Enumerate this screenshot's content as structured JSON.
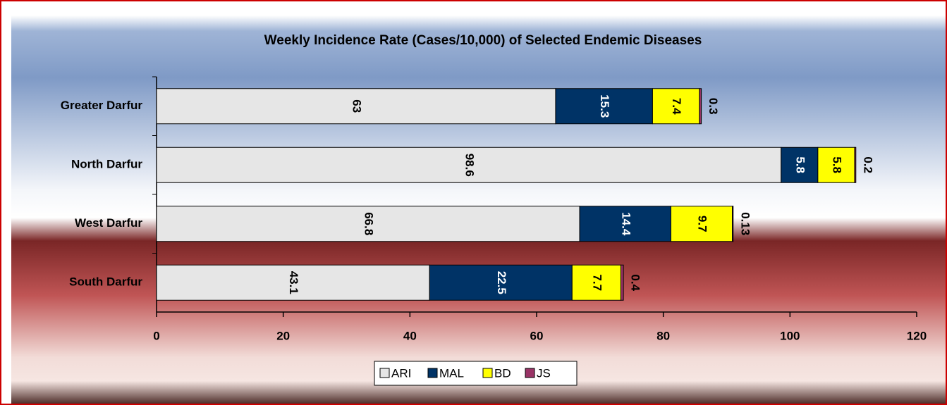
{
  "chart_data": {
    "type": "stacked_barh",
    "title": "Weekly Incidence Rate (Cases/10,000) of Selected Endemic Diseases",
    "categories": [
      "Greater Darfur",
      "North Darfur",
      "West Darfur",
      "South Darfur"
    ],
    "series": [
      {
        "name": "ARI",
        "color": "#e6e6e6",
        "values": [
          63,
          98.6,
          66.8,
          43.1
        ]
      },
      {
        "name": "MAL",
        "color": "#003366",
        "values": [
          15.3,
          5.8,
          14.4,
          22.5
        ]
      },
      {
        "name": "BD",
        "color": "#ffff00",
        "values": [
          7.4,
          5.8,
          9.7,
          7.7
        ]
      },
      {
        "name": "JS",
        "color": "#993366",
        "values": [
          0.3,
          0.2,
          0.13,
          0.4
        ]
      }
    ],
    "xlim": [
      0,
      120
    ],
    "xticks": [
      0,
      20,
      40,
      60,
      80,
      100,
      120
    ],
    "legend": "bottom"
  }
}
